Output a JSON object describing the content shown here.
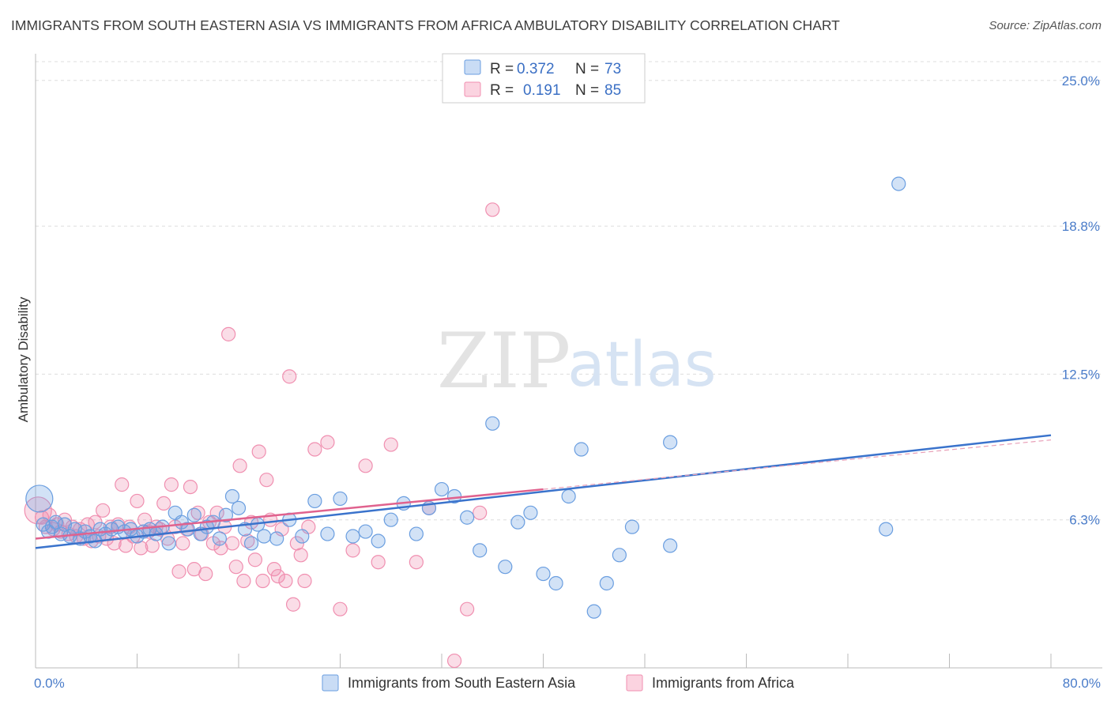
{
  "title": "IMMIGRANTS FROM SOUTH EASTERN ASIA VS IMMIGRANTS FROM AFRICA AMBULATORY DISABILITY CORRELATION CHART",
  "source": "Source: ZipAtlas.com",
  "watermark": {
    "zip": "ZIP",
    "atlas": "atlas"
  },
  "legend": {
    "rows": [
      {
        "r_label": "R =",
        "r_value": "0.372",
        "n_label": "N =",
        "n_value": "73",
        "color": "#6a9ee0"
      },
      {
        "r_label": "R =",
        "r_value": "0.191",
        "n_label": "N =",
        "n_value": "85",
        "color": "#f08fb0"
      }
    ]
  },
  "chart_data": {
    "type": "scatter",
    "title": "IMMIGRANTS FROM SOUTH EASTERN ASIA VS IMMIGRANTS FROM AFRICA AMBULATORY DISABILITY CORRELATION CHART",
    "xlabel": "",
    "ylabel": "Ambulatory Disability",
    "xlim": [
      0,
      80
    ],
    "ylim": [
      0,
      25.8
    ],
    "x_tick_labels": [
      "0.0%",
      "80.0%"
    ],
    "y_ticks": [
      6.3,
      12.5,
      18.8,
      25.0
    ],
    "y_tick_labels": [
      "6.3%",
      "12.5%",
      "18.8%",
      "25.0%"
    ],
    "grid": true,
    "legend_position": "top-center",
    "series": [
      {
        "name": "Immigrants from South Eastern Asia",
        "color": "#6a9ee0",
        "trend": {
          "x": [
            0,
            80
          ],
          "y": [
            5.1,
            9.9
          ]
        },
        "points": [
          [
            0.3,
            7.2
          ],
          [
            0.6,
            6.1
          ],
          [
            1.0,
            5.8
          ],
          [
            1.3,
            6.0
          ],
          [
            1.6,
            6.2
          ],
          [
            2.0,
            5.7
          ],
          [
            2.3,
            6.1
          ],
          [
            2.7,
            5.6
          ],
          [
            3.1,
            5.9
          ],
          [
            3.5,
            5.5
          ],
          [
            3.9,
            5.8
          ],
          [
            4.3,
            5.6
          ],
          [
            4.7,
            5.4
          ],
          [
            5.1,
            5.9
          ],
          [
            5.5,
            5.7
          ],
          [
            6.0,
            5.9
          ],
          [
            6.5,
            6.0
          ],
          [
            7.0,
            5.8
          ],
          [
            7.5,
            5.9
          ],
          [
            8.0,
            5.6
          ],
          [
            8.5,
            5.8
          ],
          [
            9.0,
            5.9
          ],
          [
            9.5,
            5.7
          ],
          [
            10.0,
            6.0
          ],
          [
            10.5,
            5.3
          ],
          [
            11.0,
            6.6
          ],
          [
            11.5,
            6.2
          ],
          [
            12.0,
            5.9
          ],
          [
            12.5,
            6.5
          ],
          [
            13.0,
            5.7
          ],
          [
            13.5,
            6.0
          ],
          [
            14.0,
            6.2
          ],
          [
            14.5,
            5.5
          ],
          [
            15.0,
            6.5
          ],
          [
            15.5,
            7.3
          ],
          [
            16.0,
            6.8
          ],
          [
            16.5,
            5.9
          ],
          [
            17.0,
            5.3
          ],
          [
            17.5,
            6.1
          ],
          [
            18.0,
            5.6
          ],
          [
            19.0,
            5.5
          ],
          [
            20.0,
            6.3
          ],
          [
            21.0,
            5.6
          ],
          [
            22.0,
            7.1
          ],
          [
            23.0,
            5.7
          ],
          [
            24.0,
            7.2
          ],
          [
            25.0,
            5.6
          ],
          [
            26.0,
            5.8
          ],
          [
            27.0,
            5.4
          ],
          [
            28.0,
            6.3
          ],
          [
            29.0,
            7.0
          ],
          [
            30.0,
            5.7
          ],
          [
            31.0,
            6.8
          ],
          [
            32.0,
            7.6
          ],
          [
            33.0,
            7.3
          ],
          [
            34.0,
            6.4
          ],
          [
            35.0,
            5.0
          ],
          [
            36.0,
            10.4
          ],
          [
            37.0,
            4.3
          ],
          [
            38.0,
            6.2
          ],
          [
            39.0,
            6.6
          ],
          [
            40.0,
            4.0
          ],
          [
            41.0,
            3.6
          ],
          [
            42.0,
            7.3
          ],
          [
            43.0,
            9.3
          ],
          [
            44.0,
            2.4
          ],
          [
            45.0,
            3.6
          ],
          [
            46.0,
            4.8
          ],
          [
            47.0,
            6.0
          ],
          [
            50.0,
            9.6
          ],
          [
            50.0,
            5.2
          ],
          [
            68.0,
            20.6
          ],
          [
            67.0,
            5.9
          ]
        ]
      },
      {
        "name": "Immigrants from Africa",
        "color": "#f08fb0",
        "trend": {
          "x": [
            0,
            40
          ],
          "y": [
            5.5,
            7.6
          ]
        },
        "points": [
          [
            0.2,
            6.7
          ],
          [
            0.5,
            6.4
          ],
          [
            0.8,
            6.0
          ],
          [
            1.1,
            6.5
          ],
          [
            1.4,
            5.9
          ],
          [
            1.7,
            6.1
          ],
          [
            2.0,
            5.8
          ],
          [
            2.3,
            6.3
          ],
          [
            2.6,
            5.7
          ],
          [
            2.9,
            6.0
          ],
          [
            3.2,
            5.6
          ],
          [
            3.5,
            5.9
          ],
          [
            3.8,
            5.5
          ],
          [
            4.1,
            6.1
          ],
          [
            4.4,
            5.4
          ],
          [
            4.7,
            6.2
          ],
          [
            5.0,
            5.6
          ],
          [
            5.3,
            6.7
          ],
          [
            5.6,
            5.5
          ],
          [
            5.9,
            6.0
          ],
          [
            6.2,
            5.3
          ],
          [
            6.5,
            6.1
          ],
          [
            6.8,
            7.8
          ],
          [
            7.1,
            5.2
          ],
          [
            7.4,
            6.0
          ],
          [
            7.7,
            5.6
          ],
          [
            8.0,
            7.1
          ],
          [
            8.3,
            5.1
          ],
          [
            8.6,
            6.3
          ],
          [
            8.9,
            5.8
          ],
          [
            9.2,
            5.2
          ],
          [
            9.5,
            6.0
          ],
          [
            9.8,
            5.9
          ],
          [
            10.1,
            7.0
          ],
          [
            10.4,
            5.5
          ],
          [
            10.7,
            7.8
          ],
          [
            11.0,
            6.0
          ],
          [
            11.3,
            4.1
          ],
          [
            11.6,
            5.3
          ],
          [
            11.9,
            5.9
          ],
          [
            12.2,
            7.7
          ],
          [
            12.5,
            4.2
          ],
          [
            12.8,
            6.6
          ],
          [
            13.1,
            5.7
          ],
          [
            13.4,
            4.0
          ],
          [
            13.7,
            6.2
          ],
          [
            14.0,
            5.3
          ],
          [
            14.3,
            6.6
          ],
          [
            14.6,
            5.1
          ],
          [
            14.9,
            6.0
          ],
          [
            15.2,
            14.2
          ],
          [
            15.5,
            5.3
          ],
          [
            15.8,
            4.3
          ],
          [
            16.1,
            8.6
          ],
          [
            16.4,
            3.7
          ],
          [
            16.7,
            5.4
          ],
          [
            17.0,
            6.2
          ],
          [
            17.3,
            4.6
          ],
          [
            17.6,
            9.2
          ],
          [
            17.9,
            3.7
          ],
          [
            18.2,
            8.0
          ],
          [
            18.5,
            6.3
          ],
          [
            18.8,
            4.2
          ],
          [
            19.1,
            3.9
          ],
          [
            19.4,
            5.9
          ],
          [
            19.7,
            3.7
          ],
          [
            20.0,
            12.4
          ],
          [
            20.3,
            2.7
          ],
          [
            20.6,
            5.3
          ],
          [
            20.9,
            4.8
          ],
          [
            21.2,
            3.7
          ],
          [
            21.5,
            6.0
          ],
          [
            22.0,
            9.3
          ],
          [
            23.0,
            9.6
          ],
          [
            24.0,
            2.5
          ],
          [
            25.0,
            5.0
          ],
          [
            26.0,
            8.6
          ],
          [
            27.0,
            4.5
          ],
          [
            28.0,
            9.5
          ],
          [
            30.0,
            4.5
          ],
          [
            31.0,
            6.8
          ],
          [
            33.0,
            0.3
          ],
          [
            34.0,
            2.5
          ],
          [
            35.0,
            6.6
          ],
          [
            36.0,
            19.5
          ]
        ]
      }
    ]
  }
}
